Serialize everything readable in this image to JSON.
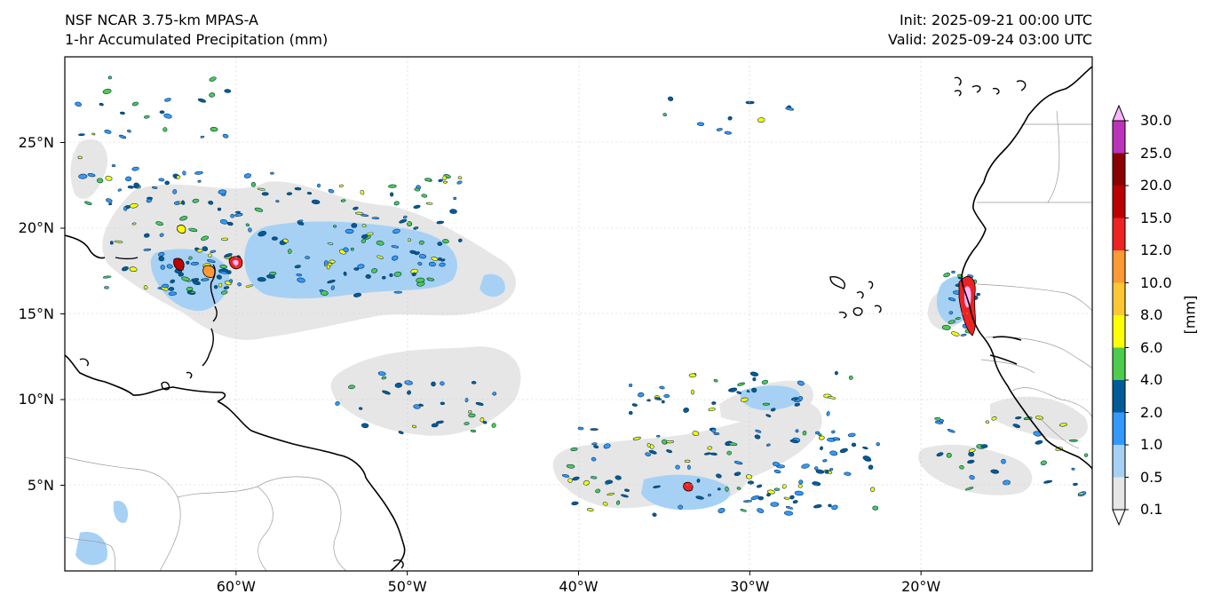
{
  "header": {
    "model": "NSF NCAR 3.75-km MPAS-A",
    "field": "1-hr Accumulated Precipitation (mm)",
    "init": "Init: 2025-09-21 00:00 UTC",
    "valid": "Valid: 2025-09-24 03:00 UTC"
  },
  "map": {
    "lon_range": [
      -70,
      -10
    ],
    "lat_range": [
      0,
      30
    ],
    "lat_ticks": [
      {
        "value": 25,
        "label": "25°N"
      },
      {
        "value": 20,
        "label": "20°N"
      },
      {
        "value": 15,
        "label": "15°N"
      },
      {
        "value": 10,
        "label": "10°N"
      },
      {
        "value": 5,
        "label": "5°N"
      }
    ],
    "lon_ticks": [
      {
        "value": -60,
        "label": "60°W"
      },
      {
        "value": -50,
        "label": "50°W"
      },
      {
        "value": -40,
        "label": "40°W"
      },
      {
        "value": -30,
        "label": "30°W"
      },
      {
        "value": -20,
        "label": "20°W"
      }
    ],
    "gridlines": true,
    "background": "#ffffff",
    "coastline_color": "#000000",
    "border_color": "#999999"
  },
  "colorbar": {
    "unit": "[mm]",
    "extend": "both",
    "levels": [
      "0.1",
      "0.5",
      "1.0",
      "2.0",
      "4.0",
      "6.0",
      "8.0",
      "10.0",
      "12.0",
      "15.0",
      "20.0",
      "25.0",
      "30.0"
    ],
    "colors": [
      "#e6e6e6",
      "#a6d1f5",
      "#3399ff",
      "#005c99",
      "#4dcc4d",
      "#ffff00",
      "#ffc733",
      "#ff9933",
      "#ee2222",
      "#bb0000",
      "#8b0000",
      "#bb33bb",
      "#ffb3ff"
    ],
    "under_color": "#ffffff",
    "over_color": "#ffb3ff"
  }
}
